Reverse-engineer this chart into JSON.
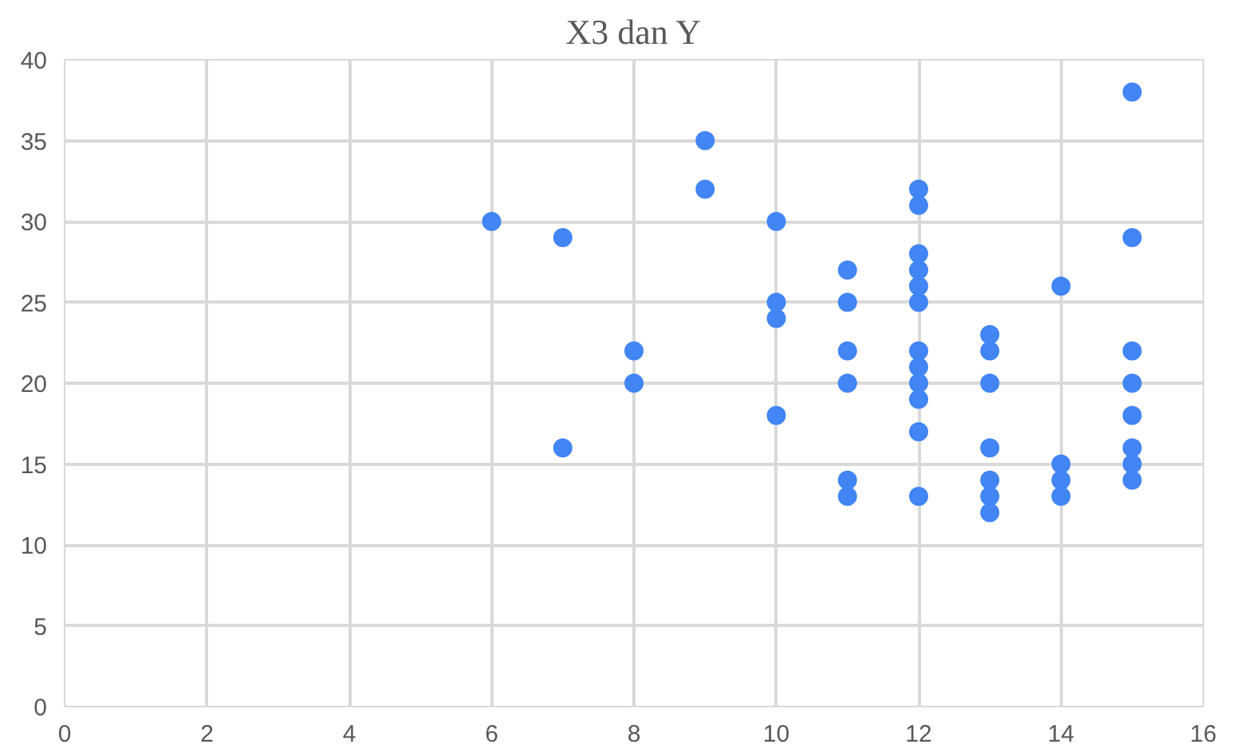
{
  "chart_data": {
    "type": "scatter",
    "title": "X3 dan Y",
    "x": [
      6,
      7,
      7,
      8,
      8,
      9,
      9,
      10,
      10,
      10,
      10,
      11,
      11,
      11,
      11,
      11,
      11,
      12,
      12,
      12,
      12,
      12,
      12,
      12,
      12,
      12,
      12,
      12,
      12,
      13,
      13,
      13,
      13,
      13,
      13,
      13,
      14,
      14,
      14,
      14,
      15,
      15,
      15,
      15,
      15,
      15,
      15,
      15
    ],
    "values": [
      30,
      29,
      16,
      22,
      20,
      35,
      32,
      30,
      25,
      24,
      18,
      27,
      25,
      22,
      20,
      14,
      13,
      32,
      31,
      28,
      27,
      26,
      25,
      22,
      21,
      20,
      19,
      17,
      13,
      23,
      22,
      20,
      16,
      14,
      13,
      12,
      26,
      15,
      14,
      13,
      38,
      29,
      22,
      20,
      18,
      16,
      15,
      14
    ],
    "color": "#4285f4",
    "marker": "circle",
    "xlim": [
      0,
      16
    ],
    "xticks": [
      0,
      2,
      4,
      6,
      8,
      10,
      12,
      14,
      16
    ],
    "ylim": [
      0,
      40
    ],
    "yticks": [
      0,
      5,
      10,
      15,
      20,
      25,
      30,
      35,
      40
    ],
    "grid": true
  }
}
